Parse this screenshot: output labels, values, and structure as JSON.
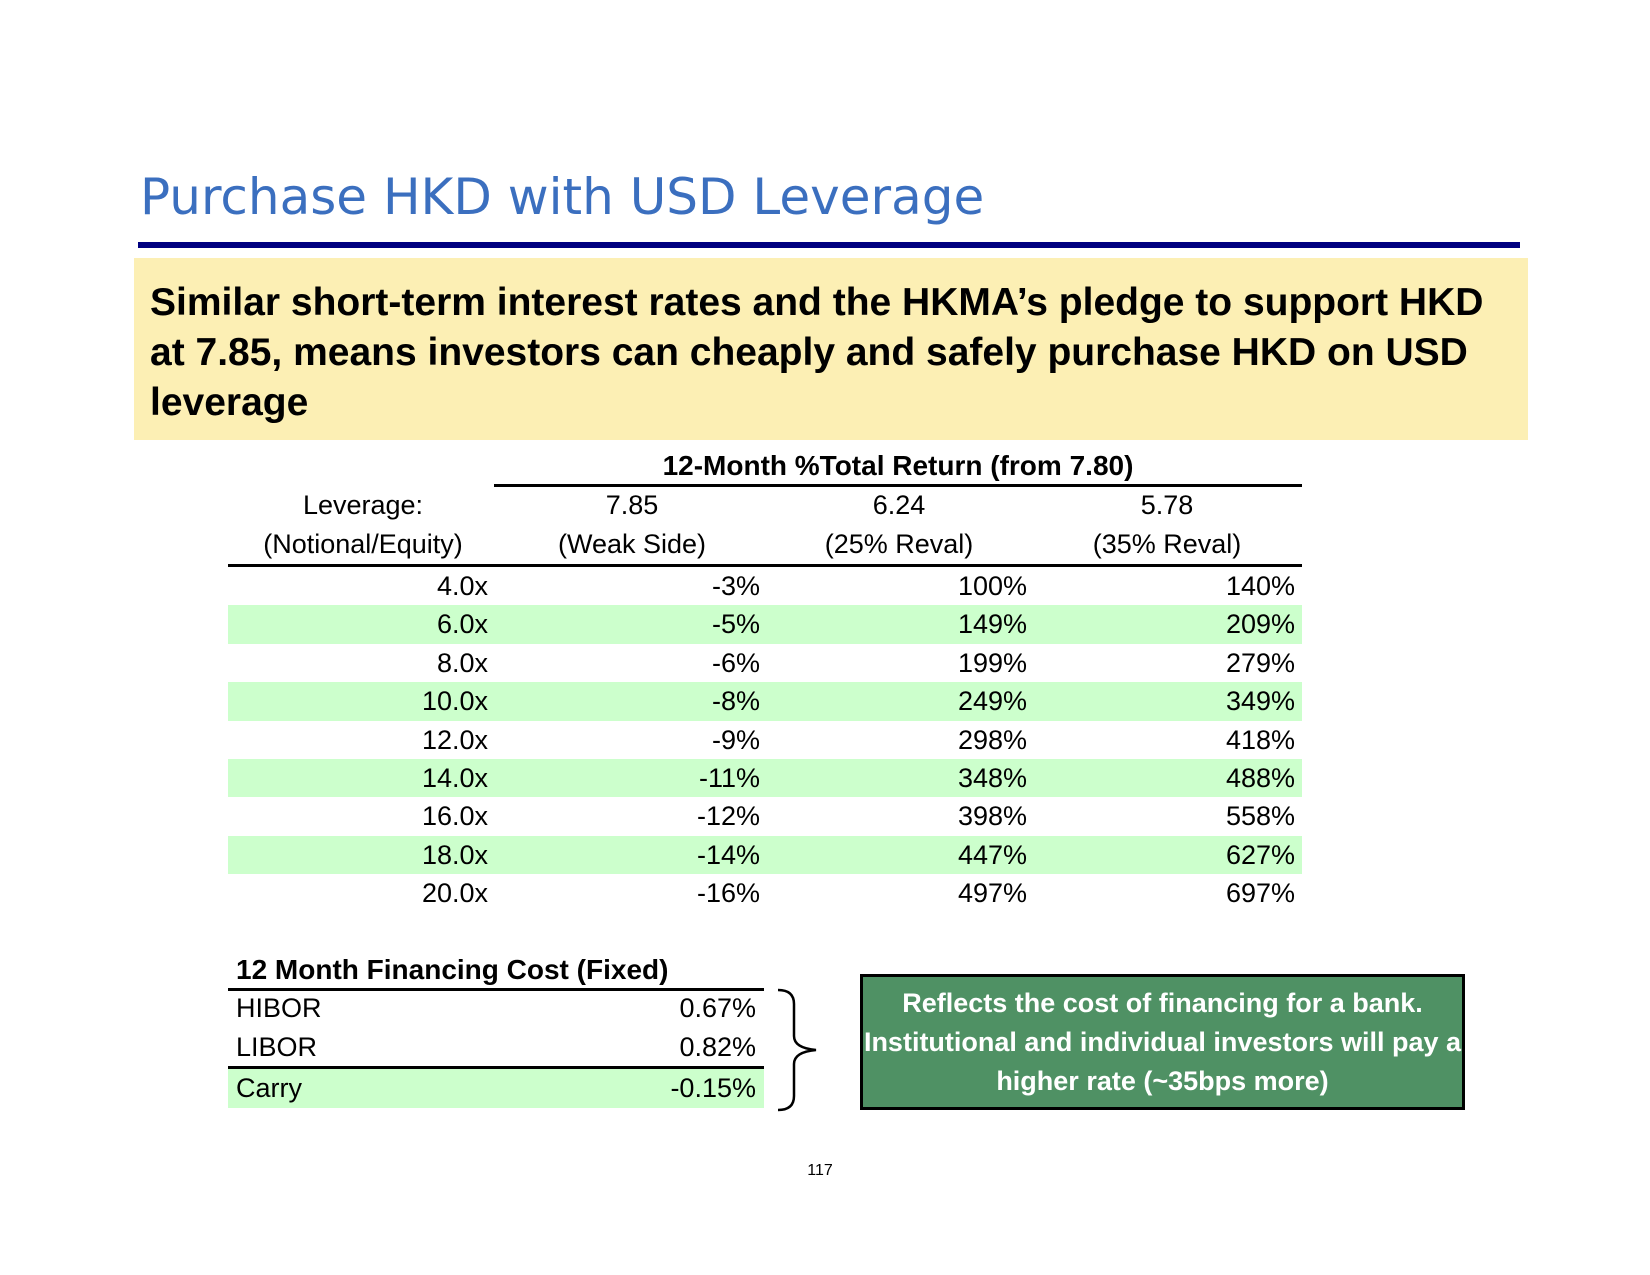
{
  "slide": {
    "title": "Purchase HKD with USD Leverage",
    "callout": "Similar short-term interest rates and the HKMA’s pledge to support HKD at 7.85, means investors can cheaply and safely purchase HKD on USD leverage",
    "page_number": "117"
  },
  "returns_table": {
    "group_header": "12-Month %Total Return (from 7.80)",
    "col_leverage": {
      "line1": "Leverage:",
      "line2": "(Notional/Equity)"
    },
    "scenarios": [
      {
        "rate": "7.85",
        "label": "(Weak Side)"
      },
      {
        "rate": "6.24",
        "label": "(25% Reval)"
      },
      {
        "rate": "5.78",
        "label": "(35% Reval)"
      }
    ],
    "rows": [
      {
        "leverage": "4.0x",
        "values": [
          "-3%",
          "100%",
          "140%"
        ]
      },
      {
        "leverage": "6.0x",
        "values": [
          "-5%",
          "149%",
          "209%"
        ]
      },
      {
        "leverage": "8.0x",
        "values": [
          "-6%",
          "199%",
          "279%"
        ]
      },
      {
        "leverage": "10.0x",
        "values": [
          "-8%",
          "249%",
          "349%"
        ]
      },
      {
        "leverage": "12.0x",
        "values": [
          "-9%",
          "298%",
          "418%"
        ]
      },
      {
        "leverage": "14.0x",
        "values": [
          "-11%",
          "348%",
          "488%"
        ]
      },
      {
        "leverage": "16.0x",
        "values": [
          "-12%",
          "398%",
          "558%"
        ]
      },
      {
        "leverage": "18.0x",
        "values": [
          "-14%",
          "447%",
          "627%"
        ]
      },
      {
        "leverage": "20.0x",
        "values": [
          "-16%",
          "497%",
          "697%"
        ]
      }
    ]
  },
  "financing_table": {
    "header": "12 Month Financing Cost (Fixed)",
    "rows": [
      {
        "label": "HIBOR",
        "value": "0.67%"
      },
      {
        "label": "LIBOR",
        "value": "0.82%"
      },
      {
        "label": "Carry",
        "value": "-0.15%"
      }
    ]
  },
  "note": "Reflects the cost of financing for a bank. Institutional and individual investors will pay a higher rate (~35bps more)",
  "colors": {
    "title": "#3b6fbf",
    "title_rule": "#000080",
    "callout_bg": "#fcefb4",
    "row_band": "#ccffcc",
    "note_bg": "#4f9164"
  }
}
